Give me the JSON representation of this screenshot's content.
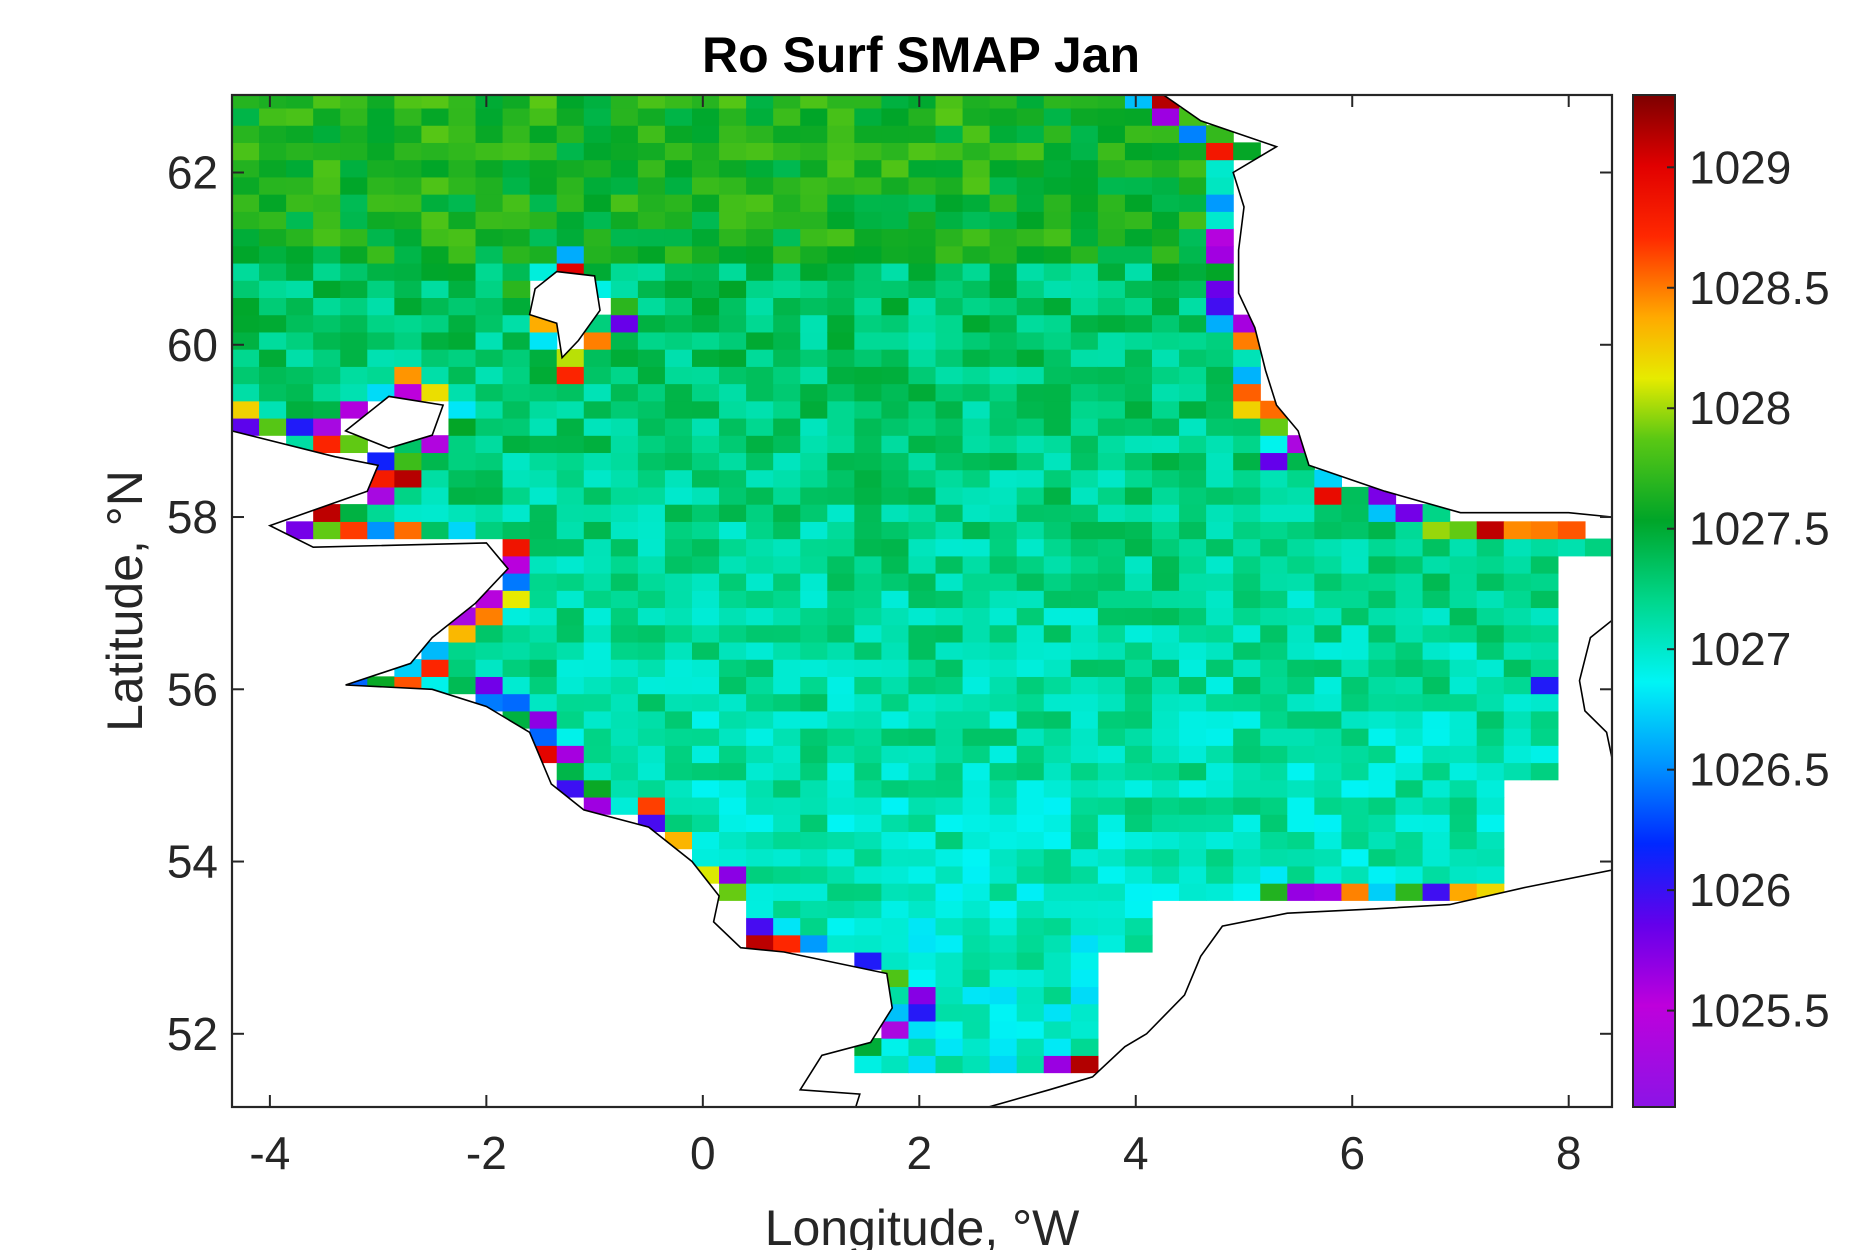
{
  "chart_data": {
    "type": "heatmap",
    "title": "Ro Surf SMAP Jan",
    "xlabel": "Longitude, °W",
    "ylabel": "Latitude, °N",
    "xlim": [
      -4.35,
      8.4
    ],
    "ylim": [
      51.15,
      62.9
    ],
    "x_ticks": [
      -4,
      -2,
      0,
      2,
      4,
      6,
      8
    ],
    "y_ticks": [
      52,
      54,
      56,
      58,
      60,
      62
    ],
    "x_tick_labels": [
      "-4",
      "-2",
      "0",
      "2",
      "4",
      "6",
      "8"
    ],
    "y_tick_labels": [
      "52",
      "54",
      "56",
      "58",
      "60",
      "62"
    ],
    "colorbar": {
      "range": [
        1025.1,
        1029.3
      ],
      "ticks": [
        1025.5,
        1026,
        1026.5,
        1027,
        1027.5,
        1028,
        1028.5,
        1029
      ],
      "tick_labels": [
        "1025.5",
        "1026",
        "1026.5",
        "1027",
        "1027.5",
        "1028",
        "1028.5",
        "1029"
      ],
      "colormap": "jet-like (violet-blue-cyan-green-yellow-red-darkred)"
    },
    "grid": false,
    "legend": "none",
    "cell_size_deg": [
      0.25,
      0.2
    ],
    "overlay": "coastline map (British Isles, Norway, Denmark, Netherlands)",
    "notes": "Gridded surface density over the North Sea; interior mostly 1026.9–1027.6, extremes along coasts."
  }
}
